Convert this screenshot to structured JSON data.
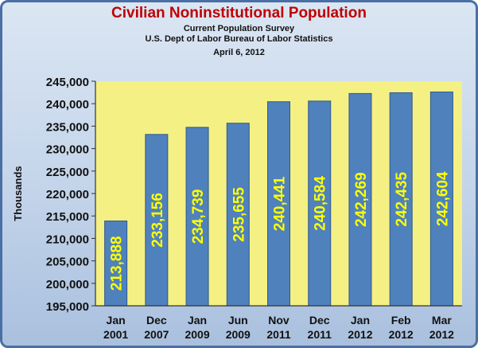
{
  "chart_data": {
    "type": "bar",
    "title": "Civilian Noninstitutional Population",
    "subtitle_lines": [
      "Current Population Survey",
      "U.S. Dept of Labor Bureau of Labor Statistics",
      "April 6, 2012"
    ],
    "xlabel": "",
    "ylabel": "Thousands",
    "categories": [
      [
        "Jan",
        "2001"
      ],
      [
        "Dec",
        "2007"
      ],
      [
        "Jan",
        "2009"
      ],
      [
        "Jun",
        "2009"
      ],
      [
        "Nov",
        "2011"
      ],
      [
        "Dec",
        "2011"
      ],
      [
        "Jan",
        "2012"
      ],
      [
        "Feb",
        "2012"
      ],
      [
        "Mar",
        "2012"
      ]
    ],
    "values": [
      213888,
      233156,
      234739,
      235655,
      240441,
      240584,
      242269,
      242435,
      242604
    ],
    "value_labels": [
      "213,888",
      "233,156",
      "234,739",
      "235,655",
      "240,441",
      "240,584",
      "242,269",
      "242,435",
      "242,604"
    ],
    "ylim": [
      195000,
      245000
    ],
    "yticks": [
      195000,
      200000,
      205000,
      210000,
      215000,
      220000,
      225000,
      230000,
      235000,
      240000,
      245000
    ],
    "ytick_labels": [
      "195,000",
      "200,000",
      "205,000",
      "210,000",
      "215,000",
      "220,000",
      "225,000",
      "230,000",
      "235,000",
      "240,000",
      "245,000"
    ],
    "grid": false,
    "legend": "none",
    "colors": {
      "bar": "#4f81bd",
      "bar_edge": "#2f5a8f",
      "plot_bg": "#f4f084",
      "value_label": "#ffff00",
      "title": "#c00000"
    }
  }
}
